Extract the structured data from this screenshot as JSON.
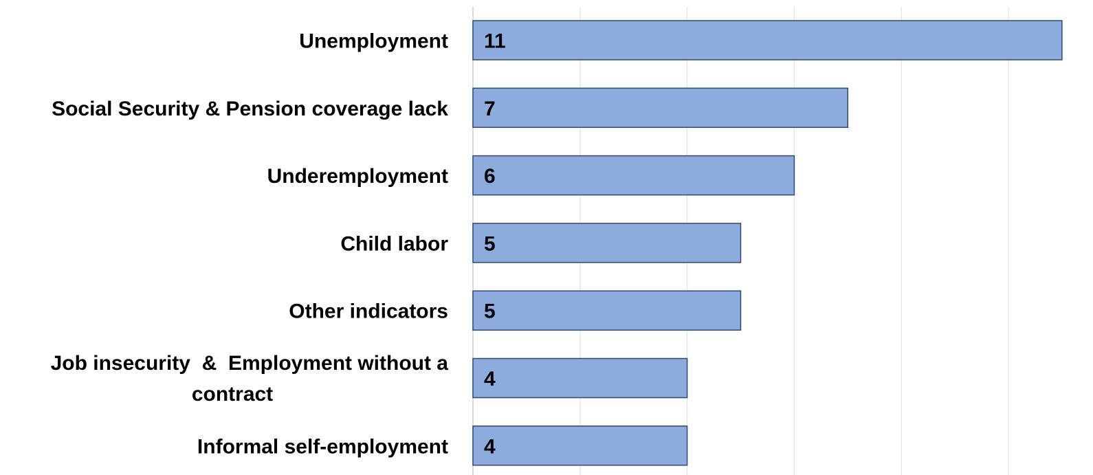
{
  "chart_data": {
    "type": "bar",
    "orientation": "horizontal",
    "categories": [
      "Unemployment",
      "Social Security & Pension coverage lack",
      "Underemployment",
      "Child labor",
      "Other indicators",
      "Job insecurity  &  Employment without a contract",
      "Informal self-employment"
    ],
    "values": [
      11,
      7,
      6,
      5,
      5,
      4,
      4
    ],
    "title": "",
    "xlabel": "",
    "ylabel": "",
    "xlim": [
      0,
      11.5
    ],
    "grid": true,
    "legend": "none",
    "bar_color": "#8eabdd",
    "bar_edge_color": "#2f4a6e"
  }
}
